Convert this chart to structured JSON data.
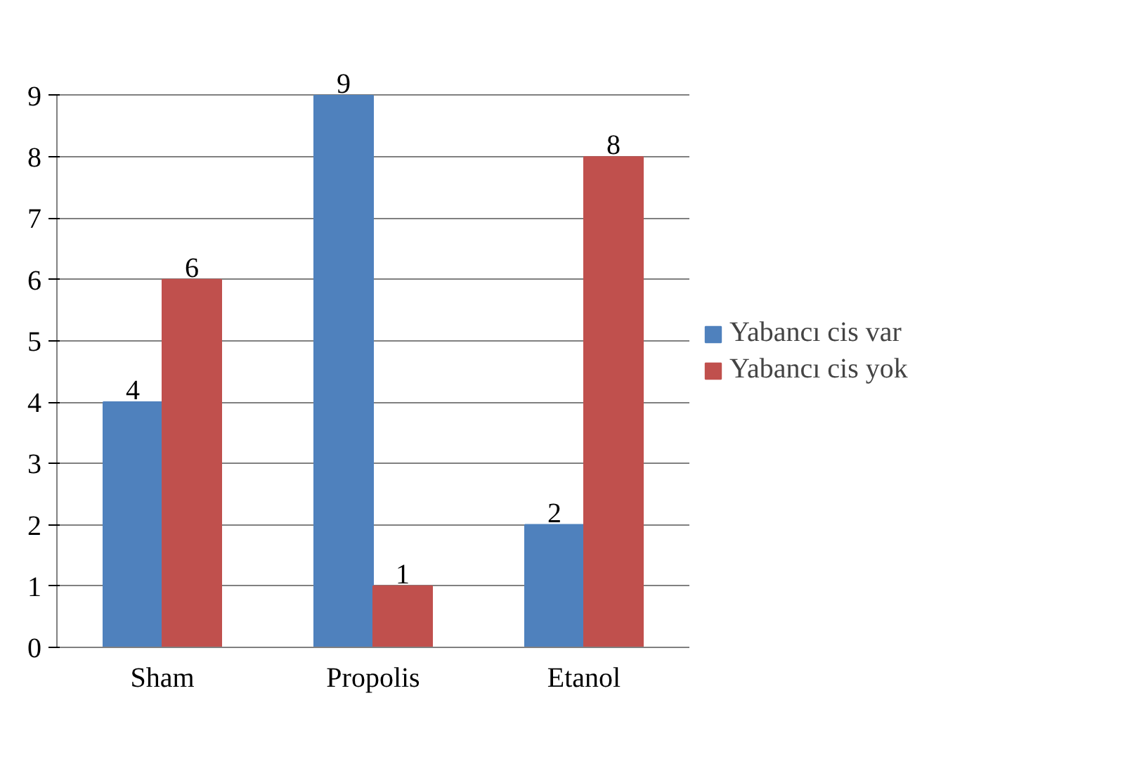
{
  "chart_data": {
    "type": "bar",
    "categories": [
      "Sham",
      "Propolis",
      "Etanol"
    ],
    "series": [
      {
        "name": "Yabancı cis var",
        "color": "#4f81bd",
        "values": [
          4,
          9,
          2
        ]
      },
      {
        "name": "Yabancı cis yok",
        "color": "#c0504d",
        "values": [
          6,
          1,
          8
        ]
      }
    ],
    "ylim": [
      0,
      9
    ],
    "yticks": [
      0,
      1,
      2,
      3,
      4,
      5,
      6,
      7,
      8,
      9
    ],
    "grid": "y",
    "legend": "right",
    "data_labels": true
  }
}
